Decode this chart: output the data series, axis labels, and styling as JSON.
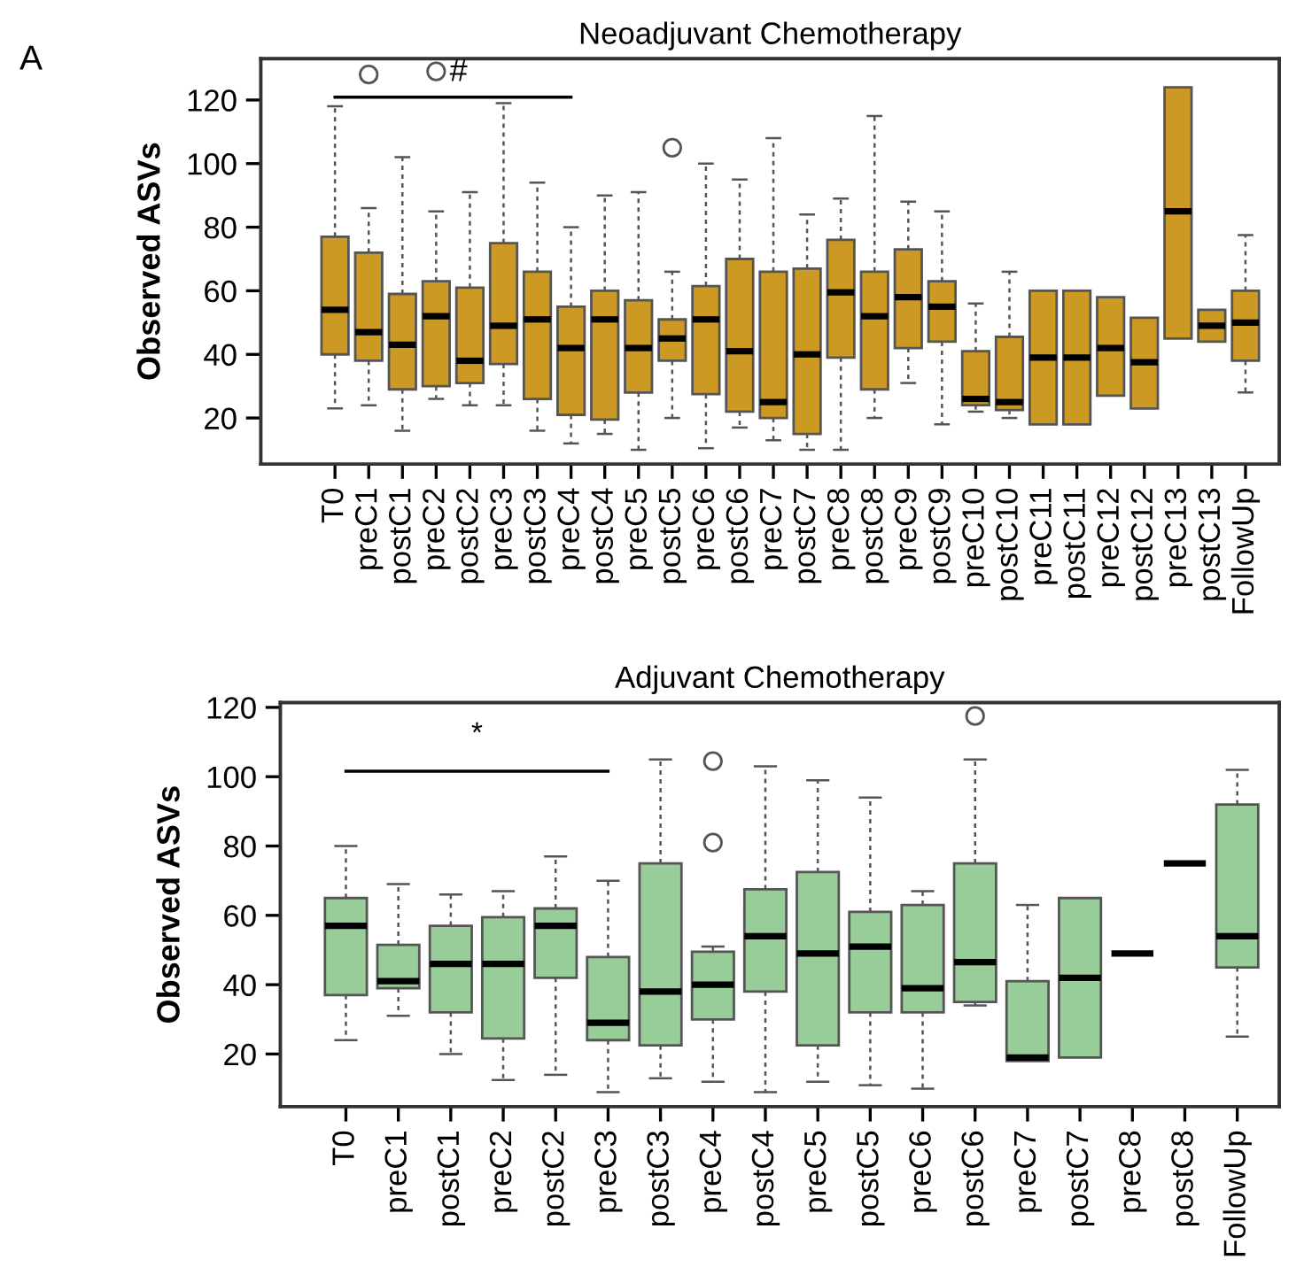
{
  "chart_data": [
    {
      "type": "box",
      "title": "Neoadjuvant Chemotherapy",
      "ylabel": "Observed ASVs",
      "color": "#cc9a22",
      "annotations": [
        "A",
        "#"
      ],
      "ylim": [
        5.5,
        133
      ],
      "yticks": [
        20,
        40,
        60,
        80,
        100,
        120
      ],
      "grid": false,
      "legend": false,
      "categories": [
        "T0",
        "preC1",
        "postC1",
        "preC2",
        "postC2",
        "preC3",
        "postC3",
        "preC4",
        "postC4",
        "preC5",
        "postC5",
        "preC6",
        "postC6",
        "preC7",
        "postC7",
        "preC8",
        "postC8",
        "preC9",
        "postC9",
        "preC10",
        "postC10",
        "preC11",
        "postC11",
        "preC12",
        "postC12",
        "preC13",
        "postC13",
        "FollowUp"
      ],
      "boxes": [
        {
          "low": 23,
          "q1": 40,
          "median": 54,
          "q3": 77,
          "high": 118
        },
        {
          "low": 24,
          "q1": 38,
          "median": 47,
          "q3": 72,
          "high": 86,
          "outliers": [
            128
          ]
        },
        {
          "low": 16,
          "q1": 29,
          "median": 43,
          "q3": 59,
          "high": 102
        },
        {
          "low": 26,
          "q1": 30,
          "median": 52,
          "q3": 63,
          "high": 85,
          "outliers": [
            129
          ]
        },
        {
          "low": 24,
          "q1": 31,
          "median": 38,
          "q3": 61,
          "high": 91
        },
        {
          "low": 24,
          "q1": 37,
          "median": 49,
          "q3": 75,
          "high": 119
        },
        {
          "low": 16,
          "q1": 26,
          "median": 51,
          "q3": 66,
          "high": 94
        },
        {
          "low": 12,
          "q1": 21,
          "median": 42,
          "q3": 55,
          "high": 80
        },
        {
          "low": 15,
          "q1": 19.5,
          "median": 51,
          "q3": 60,
          "high": 90
        },
        {
          "low": 10,
          "q1": 28,
          "median": 42,
          "q3": 57,
          "high": 91
        },
        {
          "low": 20,
          "q1": 38,
          "median": 45,
          "q3": 51,
          "high": 66,
          "outliers": [
            105
          ]
        },
        {
          "low": 10.5,
          "q1": 27.5,
          "median": 51,
          "q3": 61.5,
          "high": 100
        },
        {
          "low": 17,
          "q1": 22,
          "median": 41,
          "q3": 70,
          "high": 95
        },
        {
          "low": 13,
          "q1": 20,
          "median": 25,
          "q3": 66,
          "high": 108
        },
        {
          "low": 10,
          "q1": 15,
          "median": 40,
          "q3": 67,
          "high": 84
        },
        {
          "low": 10,
          "q1": 39,
          "median": 59.5,
          "q3": 76,
          "high": 89
        },
        {
          "low": 20,
          "q1": 29,
          "median": 52,
          "q3": 66,
          "high": 115
        },
        {
          "low": 31,
          "q1": 42,
          "median": 58,
          "q3": 73,
          "high": 88
        },
        {
          "low": 18,
          "q1": 44,
          "median": 55,
          "q3": 63,
          "high": 85
        },
        {
          "low": 22,
          "q1": 24,
          "median": 26,
          "q3": 41,
          "high": 56
        },
        {
          "low": 20,
          "q1": 22.5,
          "median": 25,
          "q3": 45.5,
          "high": 66
        },
        {
          "low": 18,
          "q1": 18,
          "median": 39,
          "q3": 60,
          "high": 60
        },
        {
          "low": 18,
          "q1": 18,
          "median": 39,
          "q3": 60,
          "high": 60
        },
        {
          "low": 27,
          "q1": 27,
          "median": 42,
          "q3": 58,
          "high": 58
        },
        {
          "low": 23,
          "q1": 23,
          "median": 37.5,
          "q3": 51.5,
          "high": 51.5
        },
        {
          "low": 45,
          "q1": 45,
          "median": 85,
          "q3": 124,
          "high": 124
        },
        {
          "low": 44,
          "q1": 44,
          "median": 49,
          "q3": 54,
          "high": 54
        },
        {
          "low": 28,
          "q1": 38,
          "median": 50,
          "q3": 60,
          "high": 77.5
        }
      ]
    },
    {
      "type": "box",
      "title": "Adjuvant Chemotherapy",
      "ylabel": "Observed ASVs",
      "color": "#98cc98",
      "annotations": [
        "*"
      ],
      "ylim": [
        4.8,
        121.4
      ],
      "yticks": [
        20,
        40,
        60,
        80,
        100,
        120
      ],
      "grid": false,
      "legend": false,
      "categories": [
        "T0",
        "preC1",
        "postC1",
        "preC2",
        "postC2",
        "preC3",
        "postC3",
        "preC4",
        "postC4",
        "preC5",
        "postC5",
        "preC6",
        "postC6",
        "preC7",
        "postC7",
        "preC8",
        "postC8",
        "FollowUp"
      ],
      "boxes": [
        {
          "low": 24,
          "q1": 37,
          "median": 57,
          "q3": 65,
          "high": 80
        },
        {
          "low": 31,
          "q1": 39,
          "median": 41,
          "q3": 51.5,
          "high": 69
        },
        {
          "low": 20,
          "q1": 32,
          "median": 46,
          "q3": 57,
          "high": 66
        },
        {
          "low": 12.5,
          "q1": 24.5,
          "median": 46,
          "q3": 59.5,
          "high": 67
        },
        {
          "low": 14,
          "q1": 42,
          "median": 57,
          "q3": 62,
          "high": 77
        },
        {
          "low": 9,
          "q1": 24,
          "median": 29,
          "q3": 48,
          "high": 70
        },
        {
          "low": 13,
          "q1": 22.5,
          "median": 38,
          "q3": 75,
          "high": 105
        },
        {
          "low": 12,
          "q1": 30,
          "median": 40,
          "q3": 49.5,
          "high": 51,
          "outliers": [
            81,
            104.5
          ]
        },
        {
          "low": 9,
          "q1": 38,
          "median": 54,
          "q3": 67.5,
          "high": 103
        },
        {
          "low": 12,
          "q1": 22.5,
          "median": 49,
          "q3": 72.5,
          "high": 99
        },
        {
          "low": 11,
          "q1": 32,
          "median": 51,
          "q3": 61,
          "high": 94
        },
        {
          "low": 10,
          "q1": 32,
          "median": 39,
          "q3": 63,
          "high": 67
        },
        {
          "low": 34,
          "q1": 35,
          "median": 46.5,
          "q3": 75,
          "high": 105,
          "outliers": [
            117.5
          ]
        },
        {
          "low": 18,
          "q1": 18,
          "median": 19,
          "q3": 41,
          "high": 63
        },
        {
          "low": 19,
          "q1": 19,
          "median": 42,
          "q3": 65,
          "high": 65
        },
        {
          "low": 49,
          "q1": 49,
          "median": 49,
          "q3": 49,
          "high": 49
        },
        {
          "low": 75,
          "q1": 75,
          "median": 75,
          "q3": 75,
          "high": 75
        },
        {
          "low": 25,
          "q1": 45,
          "median": 54,
          "q3": 92,
          "high": 102
        }
      ]
    }
  ]
}
